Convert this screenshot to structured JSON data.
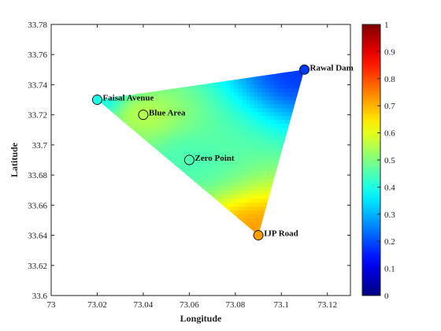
{
  "chart_data": {
    "type": "heatmap",
    "xlabel": "Longitude",
    "ylabel": "Latitude",
    "xlim": [
      73.0,
      73.13
    ],
    "ylim": [
      33.6,
      33.78
    ],
    "x_ticks": [
      "73",
      "73.02",
      "73.04",
      "73.06",
      "73.08",
      "73.1",
      "73.12"
    ],
    "x_tick_values": [
      73.0,
      73.02,
      73.04,
      73.06,
      73.08,
      73.1,
      73.12
    ],
    "y_ticks": [
      "33.6",
      "33.62",
      "33.64",
      "33.66",
      "33.68",
      "33.7",
      "33.72",
      "33.74",
      "33.76",
      "33.78"
    ],
    "y_tick_values": [
      33.6,
      33.62,
      33.64,
      33.66,
      33.68,
      33.7,
      33.72,
      33.74,
      33.76,
      33.78
    ],
    "colorbar": {
      "colormap": "jet",
      "range": [
        0,
        1
      ],
      "ticks": [
        "0",
        "0.1",
        "0.2",
        "0.3",
        "0.4",
        "0.5",
        "0.6",
        "0.7",
        "0.8",
        "0.9",
        "1"
      ],
      "tick_values": [
        0,
        0.1,
        0.2,
        0.3,
        0.4,
        0.5,
        0.6,
        0.7,
        0.8,
        0.9,
        1.0
      ]
    },
    "grid": false,
    "points": [
      {
        "label": "Faisal Avenue",
        "x": 73.02,
        "y": 33.73,
        "value": 0.4
      },
      {
        "label": "Blue Area",
        "x": 73.04,
        "y": 33.72,
        "value": 0.55
      },
      {
        "label": "Zero Point",
        "x": 73.06,
        "y": 33.69,
        "value": 0.45
      },
      {
        "label": "Rawal Dam",
        "x": 73.11,
        "y": 33.75,
        "value": 0.18
      },
      {
        "label": "IJP Road",
        "x": 73.09,
        "y": 33.64,
        "value": 0.72
      }
    ]
  }
}
